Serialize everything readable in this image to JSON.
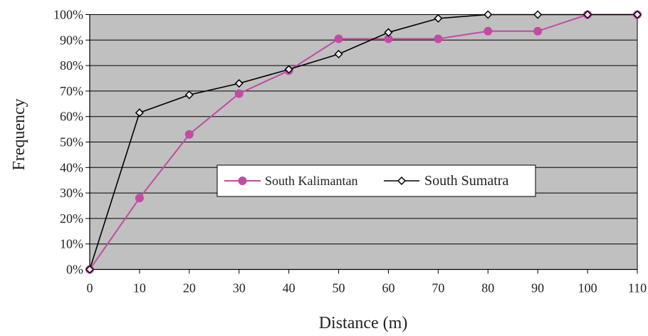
{
  "chart_data": {
    "type": "line",
    "title": "",
    "xlabel": "Distance (m)",
    "ylabel": "Frequency",
    "x": [
      0,
      10,
      20,
      30,
      40,
      50,
      60,
      70,
      80,
      90,
      100,
      110
    ],
    "x_ticks": [
      "0",
      "10",
      "20",
      "30",
      "40",
      "50",
      "60",
      "70",
      "80",
      "90",
      "100",
      "110"
    ],
    "y_ticks": [
      "0%",
      "10%",
      "20%",
      "30%",
      "40%",
      "50%",
      "60%",
      "70%",
      "80%",
      "90%",
      "100%"
    ],
    "xlim": [
      0,
      110
    ],
    "ylim": [
      0,
      100
    ],
    "grid": true,
    "legend_position": "center",
    "series": [
      {
        "name": "South Kalimantan",
        "marker": "circle",
        "color": "#c04ca3",
        "values": [
          0,
          28,
          53,
          69,
          78,
          90.5,
          90.5,
          90.5,
          93.5,
          93.5,
          100,
          100
        ]
      },
      {
        "name": "South Sumatra",
        "marker": "diamond",
        "color": "#000000",
        "values": [
          0,
          61.5,
          68.5,
          73,
          78.5,
          84.5,
          93,
          98.5,
          100,
          100,
          100,
          100
        ]
      }
    ],
    "colors": {
      "plot_background": "#c0c0c0",
      "gridline": "#000000",
      "frame": "#000000"
    }
  }
}
